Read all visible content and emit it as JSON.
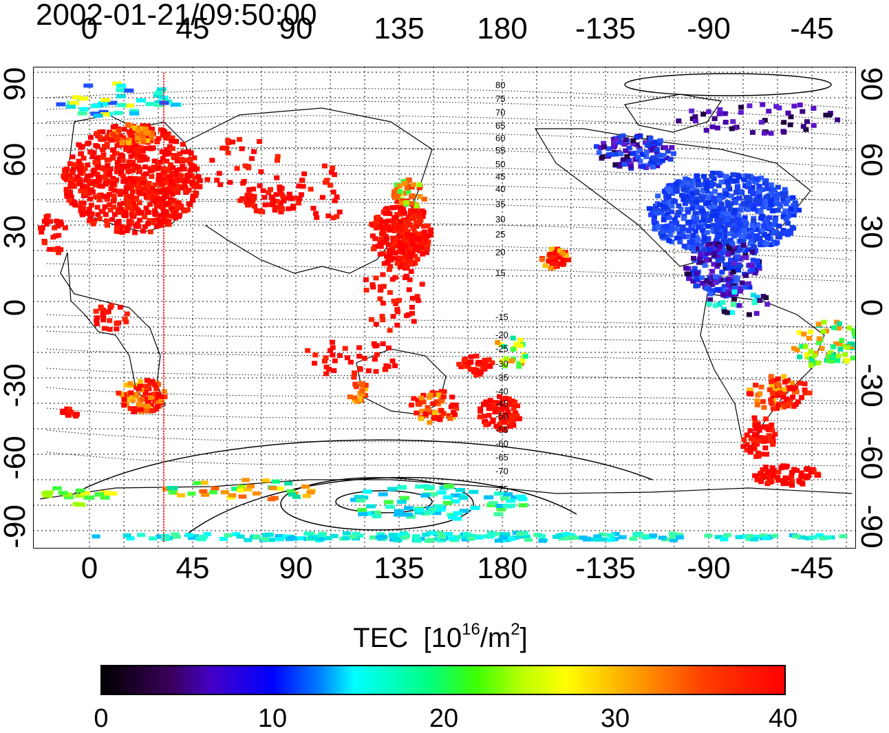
{
  "timestamp": "2002-01-21/09:50:00",
  "axes": {
    "lon_ticks": [
      "0",
      "45",
      "90",
      "135",
      "180",
      "-135",
      "-90",
      "-45"
    ],
    "lat_ticks": [
      "90",
      "60",
      "30",
      "0",
      "-30",
      "-60",
      "-90"
    ]
  },
  "magnetic_latitude_labels": [
    "80",
    "75",
    "70",
    "65",
    "60",
    "55",
    "50",
    "45",
    "40",
    "35",
    "30",
    "25",
    "20",
    "15",
    "-15",
    "-20",
    "-25",
    "-30",
    "-35",
    "-40",
    "-45",
    "-50",
    "-55",
    "-60",
    "-65",
    "-70",
    "-75"
  ],
  "colorbar": {
    "title": "TEC",
    "unit_prefix": "[10",
    "unit_exp": "16",
    "unit_mid": "/m",
    "unit_exp2": "2",
    "unit_suffix": "]",
    "min": 0,
    "max": 40,
    "ticks": [
      "0",
      "10",
      "20",
      "30",
      "40"
    ]
  },
  "colors": {
    "high_tec": "#ff0000",
    "low_tec": "#1a3cff",
    "terminator_line": "#ff0000"
  }
}
